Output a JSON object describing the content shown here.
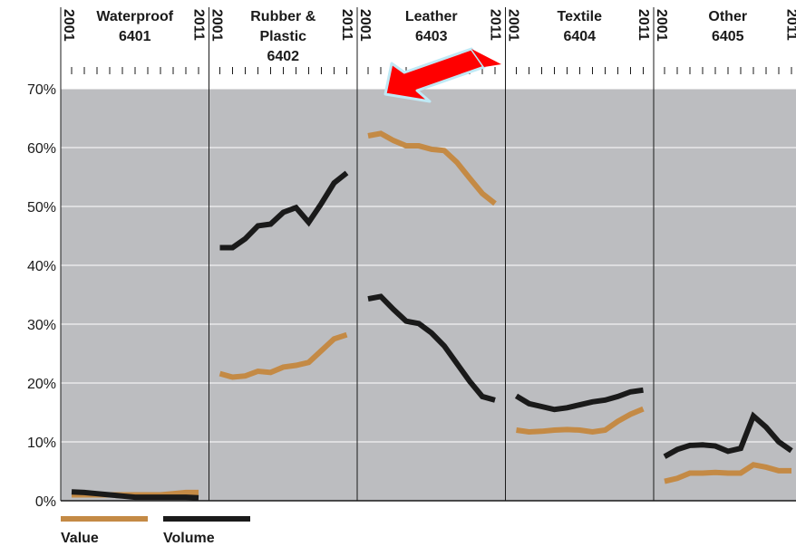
{
  "chart_data": [
    {
      "type": "line",
      "title": [
        "Waterproof",
        "6401"
      ],
      "x": [
        2001,
        2002,
        2003,
        2004,
        2005,
        2006,
        2007,
        2008,
        2009,
        2010,
        2011
      ],
      "xlim": [
        2001,
        2011
      ],
      "xticks": [
        2001,
        2011
      ],
      "ylim": [
        0,
        70
      ],
      "yticks": [
        {
          "value": 0,
          "label": "0%"
        },
        {
          "value": 10,
          "label": "10%"
        },
        {
          "value": 20,
          "label": "20%"
        },
        {
          "value": 30,
          "label": "30%"
        },
        {
          "value": 40,
          "label": "40%"
        },
        {
          "value": 50,
          "label": "50%"
        },
        {
          "value": 60,
          "label": "60%"
        },
        {
          "value": 70,
          "label": "70%"
        }
      ],
      "grid": true,
      "series": [
        {
          "name": "Value",
          "color": "#c48a45",
          "values": [
            1,
            1,
            1,
            1,
            1,
            1,
            1,
            1,
            1.2,
            1.4,
            1.4
          ]
        },
        {
          "name": "Volume",
          "color": "#1a1a1a",
          "values": [
            1.5,
            1.4,
            1.2,
            1,
            0.8,
            0.6,
            0.6,
            0.6,
            0.6,
            0.6,
            0.5
          ]
        }
      ]
    },
    {
      "type": "line",
      "title": [
        "Rubber &",
        "Plastic",
        "6402"
      ],
      "x": [
        2001,
        2002,
        2003,
        2004,
        2005,
        2006,
        2007,
        2008,
        2009,
        2010,
        2011
      ],
      "xlim": [
        2001,
        2011
      ],
      "xticks": [
        2001,
        2011
      ],
      "series": [
        {
          "color": "#c48a45",
          "values": [
            21.6,
            21,
            21.2,
            22,
            21.8,
            22.7,
            23,
            23.5,
            25.5,
            27.5,
            28.2
          ]
        },
        {
          "color": "#1a1a1a",
          "values": [
            43,
            43,
            44.5,
            46.7,
            47,
            49,
            49.8,
            47.3,
            50.5,
            54,
            55.7
          ]
        }
      ]
    },
    {
      "type": "line",
      "title": [
        "Leather",
        "6403"
      ],
      "x": [
        2001,
        2002,
        2003,
        2004,
        2005,
        2006,
        2007,
        2008,
        2009,
        2010,
        2011
      ],
      "xlim": [
        2001,
        2011
      ],
      "xticks": [
        2001,
        2011
      ],
      "series": [
        {
          "color": "#c48a45",
          "values": [
            62,
            62.4,
            61.2,
            60.3,
            60.3,
            59.7,
            59.5,
            57.5,
            54.8,
            52.2,
            50.5
          ]
        },
        {
          "color": "#1a1a1a",
          "values": [
            34.3,
            34.7,
            32.5,
            30.5,
            30.1,
            28.5,
            26.3,
            23.3,
            20.3,
            17.7,
            17.1
          ]
        }
      ]
    },
    {
      "type": "line",
      "title": [
        "Textile",
        "6404"
      ],
      "x": [
        2001,
        2002,
        2003,
        2004,
        2005,
        2006,
        2007,
        2008,
        2009,
        2010,
        2011
      ],
      "xlim": [
        2001,
        2011
      ],
      "xticks": [
        2001,
        2011
      ],
      "series": [
        {
          "color": "#c48a45",
          "values": [
            12,
            11.7,
            11.8,
            12,
            12.1,
            12,
            11.7,
            12,
            13.5,
            14.7,
            15.6
          ]
        },
        {
          "color": "#1a1a1a",
          "values": [
            17.8,
            16.5,
            16,
            15.5,
            15.8,
            16.3,
            16.8,
            17.1,
            17.7,
            18.5,
            18.8
          ]
        }
      ]
    },
    {
      "type": "line",
      "title": [
        "Other",
        "6405"
      ],
      "x": [
        2001,
        2002,
        2003,
        2004,
        2005,
        2006,
        2007,
        2008,
        2009,
        2010,
        2011
      ],
      "xlim": [
        2001,
        2011
      ],
      "xticks": [
        2001,
        2011
      ],
      "series": [
        {
          "color": "#c48a45",
          "values": [
            3.3,
            3.8,
            4.7,
            4.7,
            4.8,
            4.7,
            4.7,
            6.1,
            5.7,
            5.1,
            5.1
          ]
        },
        {
          "color": "#1a1a1a",
          "values": [
            7.5,
            8.7,
            9.4,
            9.5,
            9.3,
            8.4,
            8.9,
            14.4,
            12.5,
            10,
            8.5
          ]
        }
      ]
    }
  ]
}
